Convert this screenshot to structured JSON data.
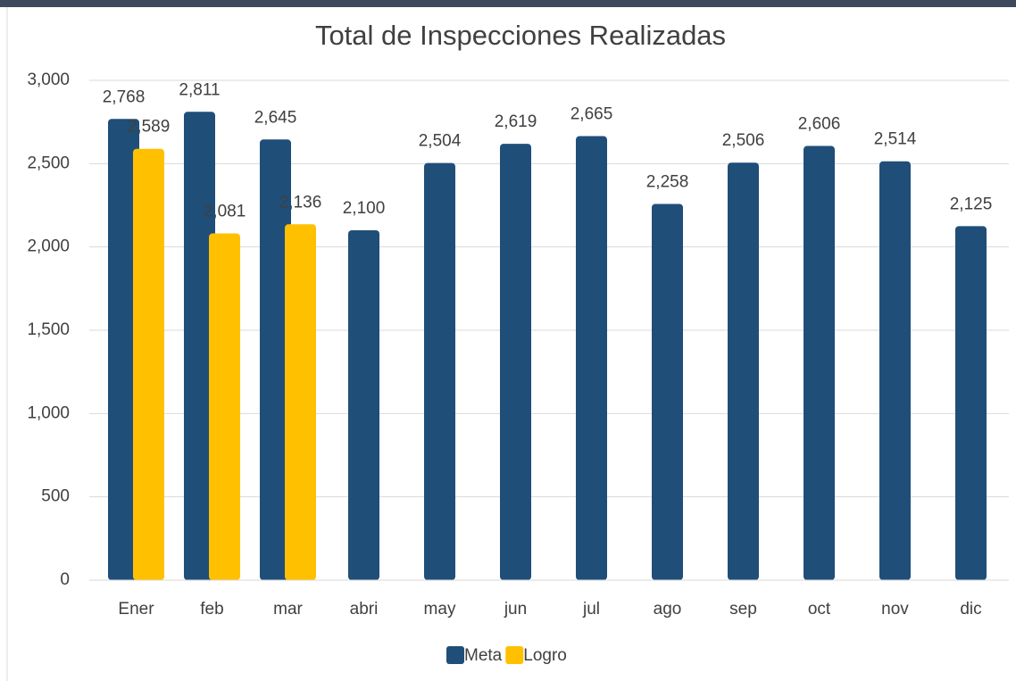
{
  "chart_data": {
    "type": "bar",
    "title": "Total de Inspecciones Realizadas",
    "categories": [
      "Ener",
      "feb",
      "mar",
      "abri",
      "may",
      "jun",
      "jul",
      "ago",
      "sep",
      "oct",
      "nov",
      "dic"
    ],
    "series": [
      {
        "name": "Meta",
        "color": "#1f4e79",
        "values": [
          2768,
          2811,
          2645,
          2100,
          2504,
          2619,
          2665,
          2258,
          2506,
          2606,
          2514,
          2125
        ],
        "value_labels": [
          "2,768",
          "2,811",
          "2,645",
          "2,100",
          "2,504",
          "2,619",
          "2,665",
          "2,258",
          "2,506",
          "2,606",
          "2,514",
          "2,125"
        ]
      },
      {
        "name": "Logro",
        "color": "#ffc000",
        "values": [
          2589,
          2081,
          2136,
          null,
          null,
          null,
          null,
          null,
          null,
          null,
          null,
          null
        ],
        "value_labels": [
          "2,589",
          "2,081",
          "2,136",
          null,
          null,
          null,
          null,
          null,
          null,
          null,
          null,
          null
        ]
      }
    ],
    "ylim": [
      0,
      3000
    ],
    "yticks": [
      0,
      500,
      {
        "value": 1000,
        "label": "1,000"
      },
      {
        "value": 1500,
        "label": "1,500"
      },
      {
        "value": 2000,
        "label": "2,000"
      },
      {
        "value": 2500,
        "label": "2,500"
      },
      {
        "value": 3000,
        "label": "3,000"
      }
    ],
    "grid": true,
    "legend": "bottom"
  }
}
